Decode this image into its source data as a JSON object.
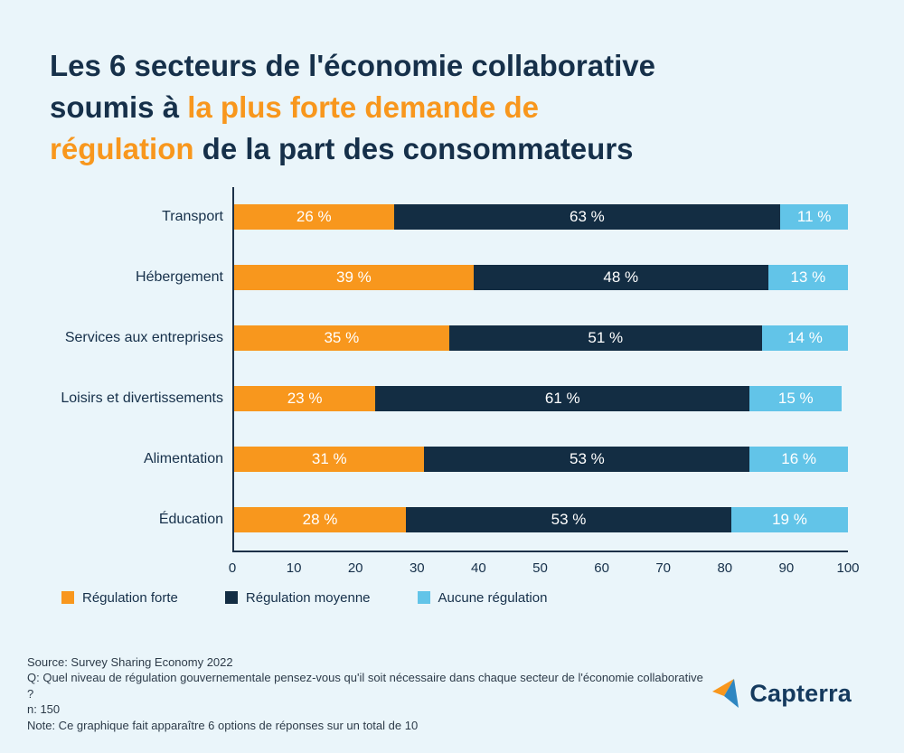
{
  "title": {
    "line1": "Les 6 secteurs de l'économie collaborative",
    "line2_normal": "soumis à ",
    "line2_highlight": "la plus forte demande de",
    "line3_highlight": "régulation",
    "line3_normal": " de la part des consommateurs"
  },
  "colors": {
    "background": "#eaf5fa",
    "title_navy": "#16304a",
    "highlight_orange": "#f8971d",
    "bar_navy": "#132d43",
    "bar_light_blue": "#62c4e8",
    "axis": "#1d3148"
  },
  "chart_data": {
    "type": "bar",
    "orientation": "horizontal",
    "stacked": true,
    "grid": false,
    "categories": [
      "Transport",
      "Hébergement",
      "Services aux entreprises",
      "Loisirs et divertissements",
      "Alimentation",
      "Éducation"
    ],
    "series": [
      {
        "name": "Régulation forte",
        "color": "#f8971d",
        "values": [
          26,
          39,
          35,
          23,
          31,
          28
        ]
      },
      {
        "name": "Régulation moyenne",
        "color": "#132d43",
        "values": [
          63,
          48,
          51,
          61,
          53,
          53
        ]
      },
      {
        "name": "Aucune régulation",
        "color": "#62c4e8",
        "values": [
          11,
          13,
          14,
          15,
          16,
          19
        ]
      }
    ],
    "value_suffix": " %",
    "xlim": [
      0,
      100
    ],
    "x_ticks": [
      0,
      10,
      20,
      30,
      40,
      50,
      60,
      70,
      80,
      90,
      100
    ],
    "legend_position": "bottom"
  },
  "footer": {
    "source": "Source: Survey Sharing Economy 2022",
    "question": "Q: Quel niveau de régulation gouvernementale pensez-vous qu'il soit nécessaire dans chaque secteur de l'économie collaborative ?",
    "n": "n: 150",
    "note": "Note: Ce graphique fait apparaître  6 options de réponses sur un total de 10",
    "brand": "Capterra"
  }
}
